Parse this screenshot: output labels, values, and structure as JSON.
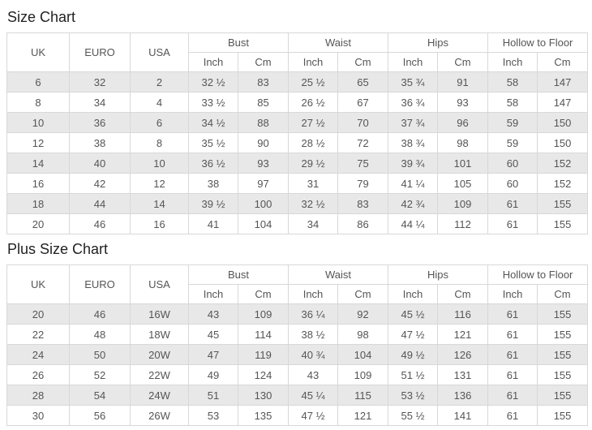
{
  "tables": [
    {
      "title": "Size Chart",
      "corner_headers": [
        "UK",
        "EURO",
        "USA"
      ],
      "group_headers": [
        "Bust",
        "Waist",
        "Hips",
        "Hollow to Floor"
      ],
      "unit_headers": [
        "Inch",
        "Cm"
      ],
      "rows": [
        [
          "6",
          "32",
          "2",
          "32 ½",
          "83",
          "25 ½",
          "65",
          "35 ¾",
          "91",
          "58",
          "147"
        ],
        [
          "8",
          "34",
          "4",
          "33 ½",
          "85",
          "26 ½",
          "67",
          "36 ¾",
          "93",
          "58",
          "147"
        ],
        [
          "10",
          "36",
          "6",
          "34 ½",
          "88",
          "27 ½",
          "70",
          "37 ¾",
          "96",
          "59",
          "150"
        ],
        [
          "12",
          "38",
          "8",
          "35 ½",
          "90",
          "28 ½",
          "72",
          "38 ¾",
          "98",
          "59",
          "150"
        ],
        [
          "14",
          "40",
          "10",
          "36 ½",
          "93",
          "29 ½",
          "75",
          "39 ¾",
          "101",
          "60",
          "152"
        ],
        [
          "16",
          "42",
          "12",
          "38",
          "97",
          "31",
          "79",
          "41 ¼",
          "105",
          "60",
          "152"
        ],
        [
          "18",
          "44",
          "14",
          "39 ½",
          "100",
          "32 ½",
          "83",
          "42 ¾",
          "109",
          "61",
          "155"
        ],
        [
          "20",
          "46",
          "16",
          "41",
          "104",
          "34",
          "86",
          "44 ¼",
          "112",
          "61",
          "155"
        ]
      ]
    },
    {
      "title": "Plus Size Chart",
      "corner_headers": [
        "UK",
        "EURO",
        "USA"
      ],
      "group_headers": [
        "Bust",
        "Waist",
        "Hips",
        "Hollow to Floor"
      ],
      "unit_headers": [
        "Inch",
        "Cm"
      ],
      "rows": [
        [
          "20",
          "46",
          "16W",
          "43",
          "109",
          "36 ¼",
          "92",
          "45 ½",
          "116",
          "61",
          "155"
        ],
        [
          "22",
          "48",
          "18W",
          "45",
          "114",
          "38 ½",
          "98",
          "47 ½",
          "121",
          "61",
          "155"
        ],
        [
          "24",
          "50",
          "20W",
          "47",
          "119",
          "40 ¾",
          "104",
          "49 ½",
          "126",
          "61",
          "155"
        ],
        [
          "26",
          "52",
          "22W",
          "49",
          "124",
          "43",
          "109",
          "51 ½",
          "131",
          "61",
          "155"
        ],
        [
          "28",
          "54",
          "24W",
          "51",
          "130",
          "45 ¼",
          "115",
          "53 ½",
          "136",
          "61",
          "155"
        ],
        [
          "30",
          "56",
          "26W",
          "53",
          "135",
          "47 ½",
          "121",
          "55 ½",
          "141",
          "61",
          "155"
        ]
      ]
    }
  ]
}
